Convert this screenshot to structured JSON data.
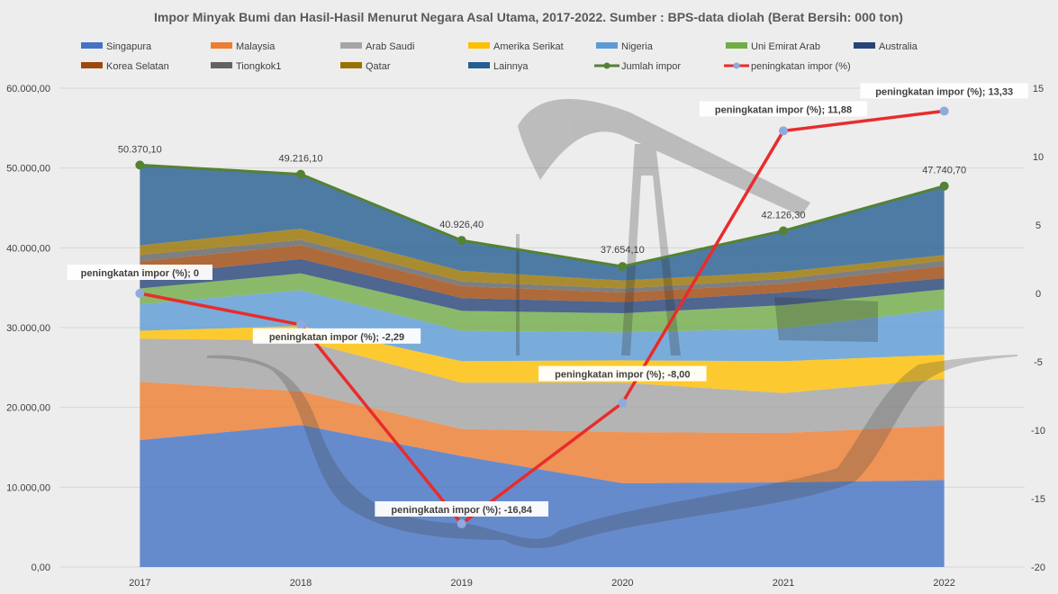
{
  "chart_data": {
    "type": "area",
    "title": "Impor Minyak Bumi dan Hasil-Hasil Menurut Negara Asal Utama, 2017-2022. Sumber : BPS-data diolah (Berat Bersih: 000 ton)",
    "categories": [
      "2017",
      "2018",
      "2019",
      "2020",
      "2021",
      "2022"
    ],
    "ylim": [
      0,
      60000
    ],
    "y2lim": [
      -20,
      15
    ],
    "y_ticks": [
      "0,00",
      "10.000,00",
      "20.000,00",
      "30.000,00",
      "40.000,00",
      "50.000,00",
      "60.000,00"
    ],
    "y2_ticks": [
      "-20",
      "-15",
      "-10",
      "-5",
      "0",
      "5",
      "10",
      "15"
    ],
    "series": [
      {
        "name": "Singapura",
        "color": "#4472c4",
        "values": [
          15900,
          17800,
          13900,
          10500,
          10600,
          10900
        ]
      },
      {
        "name": "Malaysia",
        "color": "#ed7d31",
        "values": [
          7300,
          4200,
          3400,
          6400,
          6200,
          6800
        ]
      },
      {
        "name": "Arab Saudi",
        "color": "#a5a5a5",
        "values": [
          5400,
          6400,
          5800,
          6200,
          5000,
          5900
        ]
      },
      {
        "name": "Amerika Serikat",
        "color": "#ffc000",
        "values": [
          1000,
          1800,
          2700,
          2800,
          4000,
          3000
        ]
      },
      {
        "name": "Nigeria",
        "color": "#5b9bd5",
        "values": [
          3300,
          4500,
          3800,
          3500,
          4100,
          5700
        ]
      },
      {
        "name": "Uni Emirat Arab",
        "color": "#70ad47",
        "values": [
          2000,
          2100,
          2500,
          2400,
          2900,
          2500
        ]
      },
      {
        "name": "Australia",
        "color": "#264478",
        "values": [
          1600,
          1800,
          1600,
          1400,
          1600,
          1400
        ]
      },
      {
        "name": "Korea Selatan",
        "color": "#9e480e",
        "values": [
          1800,
          1700,
          1500,
          1200,
          1100,
          1500
        ]
      },
      {
        "name": "Tiongkok1",
        "color": "#636363",
        "values": [
          800,
          700,
          600,
          500,
          600,
          700
        ]
      },
      {
        "name": "Qatar",
        "color": "#997300",
        "values": [
          1200,
          1400,
          1300,
          1000,
          900,
          700
        ]
      },
      {
        "name": "Lainnya",
        "color": "#255e91",
        "values": [
          10070,
          6816,
          3826,
          1754,
          5126,
          8641
        ]
      }
    ],
    "total": {
      "name": "Jumlah impor",
      "color": "#548235",
      "values": [
        50370.1,
        49216.1,
        40926.4,
        37654.1,
        42126.3,
        47740.7
      ],
      "labels": [
        "50.370,10",
        "49.216,10",
        "40.926,40",
        "37.654,10",
        "42.126,30",
        "47.740,70"
      ]
    },
    "growth": {
      "name": "peningkatan impor (%)",
      "color": "#e82c2c",
      "marker_color": "#8faadc",
      "values": [
        0,
        -2.29,
        -16.84,
        -8.0,
        11.88,
        13.33
      ],
      "labels": [
        "peningkatan impor (%); 0",
        "peningkatan impor (%); -2,29",
        "peningkatan impor (%); -16,84",
        "peningkatan impor (%); -8,00",
        "peningkatan impor (%); 11,88",
        "peningkatan impor (%); 13,33"
      ]
    },
    "legend_position": "top"
  }
}
